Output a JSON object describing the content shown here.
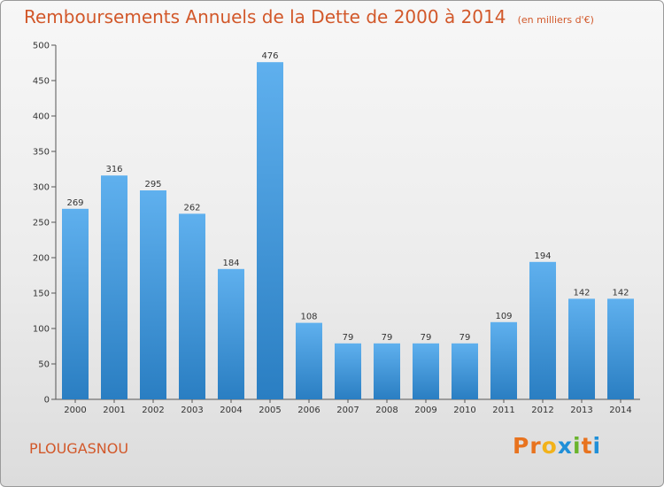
{
  "header": {
    "title": "Remboursements Annuels de la Dette de 2000 à 2014",
    "unit": "(en milliers d'€)"
  },
  "footer": {
    "commune": "PLOUGASNOU",
    "logo": "Proxiti"
  },
  "colors": {
    "title": "#d2582a",
    "bar_top": "#5fb0ee",
    "bar_bottom": "#2a7ec2",
    "logo_letters": [
      "#e8731f",
      "#e8731f",
      "#f2b21a",
      "#1f8fd8",
      "#6ab42d",
      "#e8731f",
      "#1f8fd8"
    ]
  },
  "chart_data": {
    "type": "bar",
    "title": "Remboursements Annuels de la Dette de 2000 à 2014",
    "xlabel": "",
    "ylabel": "",
    "categories": [
      "2000",
      "2001",
      "2002",
      "2003",
      "2004",
      "2005",
      "2006",
      "2007",
      "2008",
      "2009",
      "2010",
      "2011",
      "2012",
      "2013",
      "2014"
    ],
    "values": [
      269,
      316,
      295,
      262,
      184,
      476,
      108,
      79,
      79,
      79,
      79,
      109,
      194,
      142,
      142
    ],
    "ylim": [
      0,
      500
    ],
    "yticks": [
      0,
      50,
      100,
      150,
      200,
      250,
      300,
      350,
      400,
      450,
      500
    ],
    "grid": false,
    "legend": "none"
  }
}
